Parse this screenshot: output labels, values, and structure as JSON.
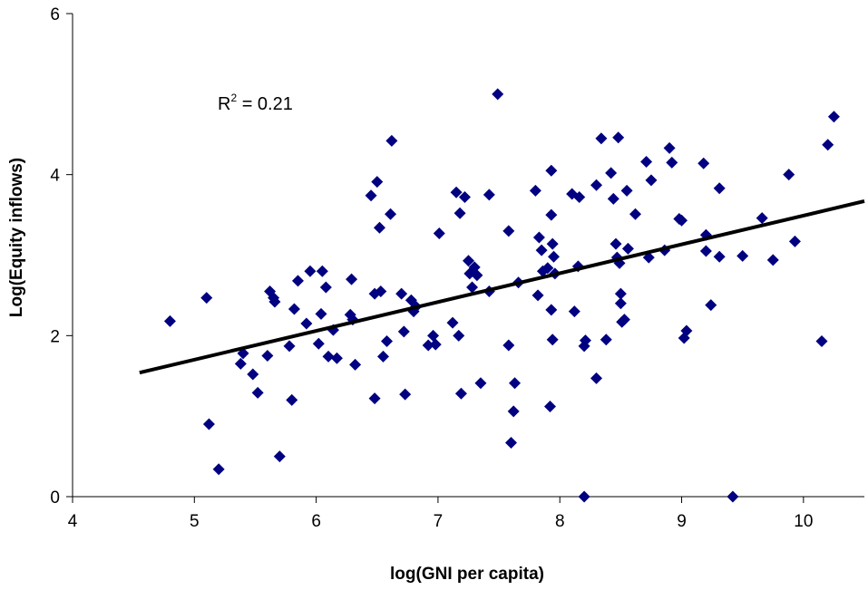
{
  "chart_data": {
    "type": "scatter",
    "xlabel": "log(GNI per capita)",
    "ylabel": "Log(Equity inflows)",
    "xlim": [
      4,
      10.5
    ],
    "ylim": [
      0,
      6
    ],
    "x_ticks": [
      "4",
      "5",
      "6",
      "7",
      "8",
      "9",
      "10"
    ],
    "y_ticks": [
      "0",
      "2",
      "4",
      "6"
    ],
    "annotation": {
      "base": "R",
      "sup": "2",
      "rest": " = 0.21"
    },
    "marker_color": "#000080",
    "trendline": {
      "x": [
        4.55,
        10.5
      ],
      "y": [
        1.54,
        3.67
      ],
      "color": "#000000"
    },
    "points": [
      [
        4.8,
        2.18
      ],
      [
        5.1,
        2.47
      ],
      [
        5.12,
        0.9
      ],
      [
        5.2,
        0.34
      ],
      [
        5.38,
        1.65
      ],
      [
        5.4,
        1.78
      ],
      [
        5.48,
        1.52
      ],
      [
        5.52,
        1.29
      ],
      [
        5.6,
        1.75
      ],
      [
        5.62,
        2.55
      ],
      [
        5.65,
        2.47
      ],
      [
        5.66,
        2.42
      ],
      [
        5.7,
        0.5
      ],
      [
        5.78,
        1.87
      ],
      [
        5.8,
        1.2
      ],
      [
        5.82,
        2.33
      ],
      [
        5.85,
        2.68
      ],
      [
        5.92,
        2.15
      ],
      [
        5.95,
        2.8
      ],
      [
        6.02,
        1.9
      ],
      [
        6.04,
        2.27
      ],
      [
        6.05,
        2.8
      ],
      [
        6.08,
        2.6
      ],
      [
        6.1,
        1.74
      ],
      [
        6.14,
        2.07
      ],
      [
        6.17,
        1.72
      ],
      [
        6.28,
        2.26
      ],
      [
        6.29,
        2.7
      ],
      [
        6.3,
        2.2
      ],
      [
        6.32,
        1.64
      ],
      [
        6.45,
        3.74
      ],
      [
        6.48,
        1.22
      ],
      [
        6.48,
        2.52
      ],
      [
        6.5,
        3.91
      ],
      [
        6.52,
        3.34
      ],
      [
        6.53,
        2.55
      ],
      [
        6.55,
        1.74
      ],
      [
        6.58,
        1.93
      ],
      [
        6.61,
        3.51
      ],
      [
        6.62,
        4.42
      ],
      [
        6.7,
        2.52
      ],
      [
        6.72,
        2.05
      ],
      [
        6.73,
        1.27
      ],
      [
        6.78,
        2.44
      ],
      [
        6.8,
        2.3
      ],
      [
        6.82,
        2.36
      ],
      [
        6.92,
        1.88
      ],
      [
        6.96,
        2.0
      ],
      [
        6.98,
        1.89
      ],
      [
        7.01,
        3.27
      ],
      [
        7.12,
        2.16
      ],
      [
        7.15,
        3.78
      ],
      [
        7.17,
        2.0
      ],
      [
        7.18,
        3.52
      ],
      [
        7.19,
        1.28
      ],
      [
        7.22,
        3.72
      ],
      [
        7.25,
        2.93
      ],
      [
        7.26,
        2.77
      ],
      [
        7.28,
        2.6
      ],
      [
        7.3,
        2.85
      ],
      [
        7.32,
        2.75
      ],
      [
        7.35,
        1.41
      ],
      [
        7.42,
        3.75
      ],
      [
        7.42,
        2.55
      ],
      [
        7.49,
        5.0
      ],
      [
        7.58,
        1.88
      ],
      [
        7.58,
        3.3
      ],
      [
        7.6,
        0.67
      ],
      [
        7.62,
        1.06
      ],
      [
        7.63,
        1.41
      ],
      [
        7.66,
        2.66
      ],
      [
        7.8,
        3.8
      ],
      [
        7.82,
        2.5
      ],
      [
        7.83,
        3.22
      ],
      [
        7.85,
        3.06
      ],
      [
        7.86,
        2.8
      ],
      [
        7.9,
        2.84
      ],
      [
        7.92,
        1.12
      ],
      [
        7.93,
        4.05
      ],
      [
        7.93,
        3.5
      ],
      [
        7.93,
        2.32
      ],
      [
        7.94,
        3.14
      ],
      [
        7.94,
        1.95
      ],
      [
        7.95,
        2.98
      ],
      [
        7.96,
        2.77
      ],
      [
        8.1,
        3.76
      ],
      [
        8.12,
        2.3
      ],
      [
        8.15,
        2.86
      ],
      [
        8.16,
        3.72
      ],
      [
        8.2,
        0.0
      ],
      [
        8.2,
        1.87
      ],
      [
        8.21,
        1.94
      ],
      [
        8.3,
        3.87
      ],
      [
        8.3,
        1.47
      ],
      [
        8.34,
        4.45
      ],
      [
        8.38,
        1.95
      ],
      [
        8.42,
        4.02
      ],
      [
        8.44,
        3.7
      ],
      [
        8.46,
        3.14
      ],
      [
        8.47,
        2.97
      ],
      [
        8.48,
        4.46
      ],
      [
        8.49,
        2.9
      ],
      [
        8.5,
        2.52
      ],
      [
        8.5,
        2.4
      ],
      [
        8.51,
        2.17
      ],
      [
        8.53,
        2.2
      ],
      [
        8.55,
        3.8
      ],
      [
        8.56,
        3.08
      ],
      [
        8.62,
        3.51
      ],
      [
        8.71,
        4.16
      ],
      [
        8.73,
        2.97
      ],
      [
        8.75,
        3.93
      ],
      [
        8.86,
        3.06
      ],
      [
        8.9,
        4.33
      ],
      [
        8.92,
        4.15
      ],
      [
        8.98,
        3.45
      ],
      [
        9.0,
        3.43
      ],
      [
        9.02,
        1.97
      ],
      [
        9.04,
        2.06
      ],
      [
        9.18,
        4.14
      ],
      [
        9.2,
        3.25
      ],
      [
        9.2,
        3.05
      ],
      [
        9.24,
        2.38
      ],
      [
        9.31,
        3.83
      ],
      [
        9.31,
        2.98
      ],
      [
        9.42,
        0.0
      ],
      [
        9.5,
        2.99
      ],
      [
        9.66,
        3.46
      ],
      [
        9.75,
        2.94
      ],
      [
        9.88,
        4.0
      ],
      [
        9.93,
        3.17
      ],
      [
        10.15,
        1.93
      ],
      [
        10.2,
        4.37
      ],
      [
        10.25,
        4.72
      ]
    ]
  }
}
